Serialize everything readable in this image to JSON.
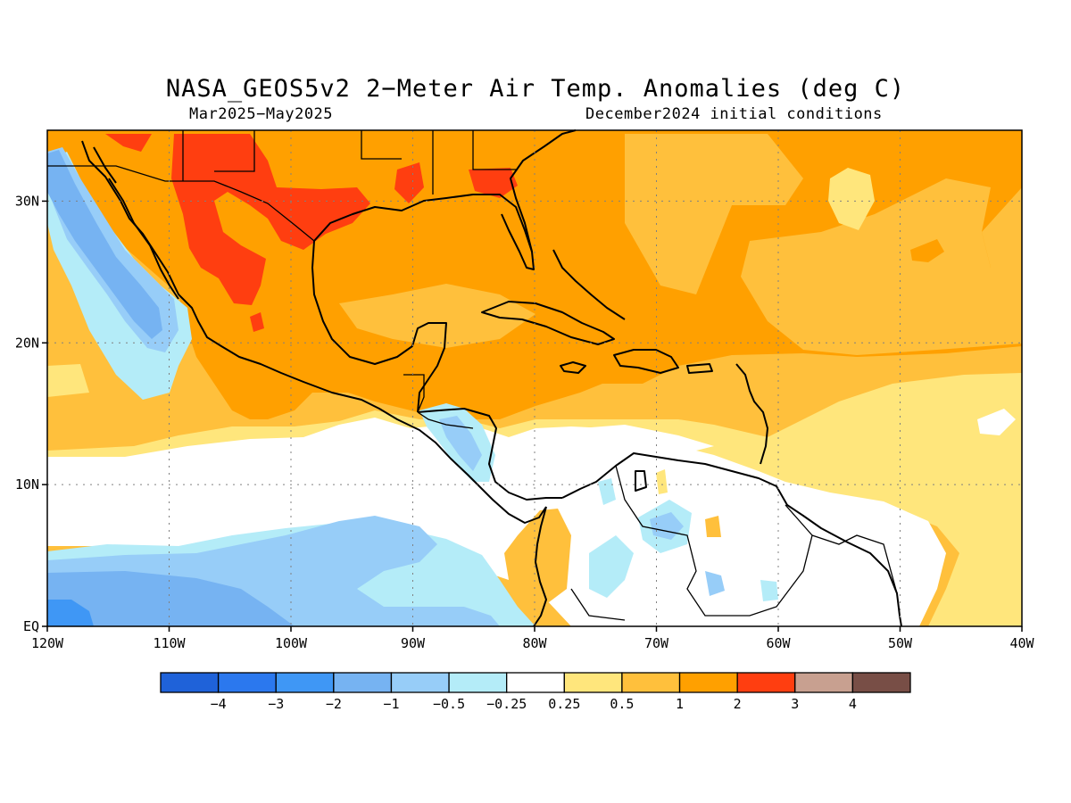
{
  "title": "NASA_GEOS5v2 2−Meter Air Temp. Anomalies (deg C)",
  "subtitle_left": "Mar2025−May2025",
  "subtitle_right": "December2024 initial conditions",
  "map": {
    "lon_range": [
      -120,
      -40
    ],
    "lat_range": [
      0,
      35
    ],
    "lon_ticks": [
      {
        "value": -120,
        "label": "120W"
      },
      {
        "value": -110,
        "label": "110W"
      },
      {
        "value": -100,
        "label": "100W"
      },
      {
        "value": -90,
        "label": "90W"
      },
      {
        "value": -80,
        "label": "80W"
      },
      {
        "value": -70,
        "label": "70W"
      },
      {
        "value": -60,
        "label": "60W"
      },
      {
        "value": -50,
        "label": "50W"
      },
      {
        "value": -40,
        "label": "40W"
      }
    ],
    "lat_ticks": [
      {
        "value": 0,
        "label": "EQ"
      },
      {
        "value": 10,
        "label": "10N"
      },
      {
        "value": 20,
        "label": "20N"
      },
      {
        "value": 30,
        "label": "30N"
      }
    ],
    "grid": true
  },
  "colorbar": {
    "colors": [
      "#1f62d9",
      "#2b78ee",
      "#3f97f5",
      "#76b3f2",
      "#97cdf8",
      "#b4ecf8",
      "#ffffff",
      "#ffe67c",
      "#ffc03c",
      "#ffa000",
      "#ff3e10",
      "#c8a090",
      "#784e46"
    ],
    "labels": [
      "−4",
      "−3",
      "−2",
      "−1",
      "−0.5",
      "−0.25",
      "0.25",
      "0.5",
      "1",
      "2",
      "3",
      "4"
    ]
  }
}
